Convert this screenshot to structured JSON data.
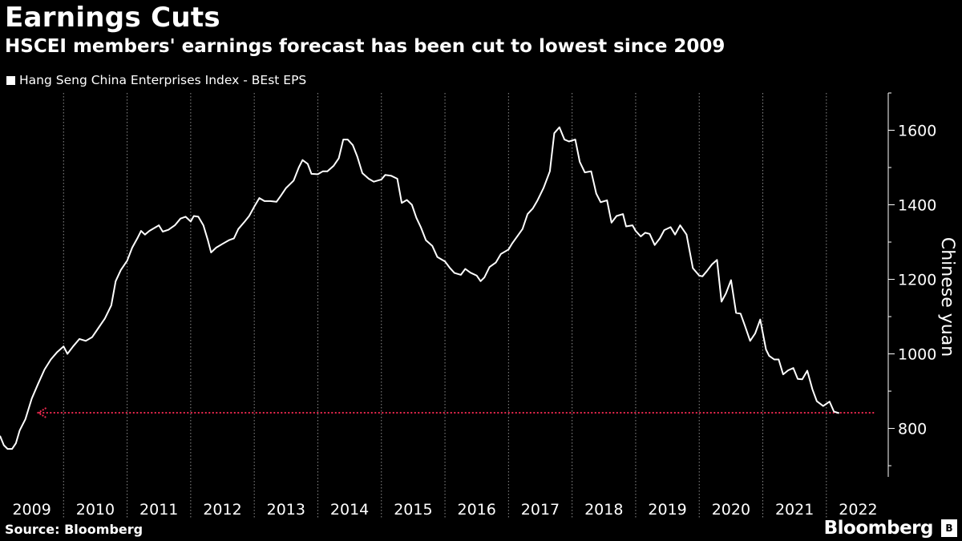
{
  "title": "Earnings Cuts",
  "subtitle": "HSCEI members' earnings forecast has been cut to lowest since 2009",
  "source": "Source: Bloomberg",
  "brand": "Bloomberg",
  "brand_mark": "B",
  "colors": {
    "line": "#ffffff",
    "reference": "#e8284d",
    "grid": "#8c8c8c",
    "background": "#000000"
  },
  "chart_data": {
    "type": "line",
    "title": "Earnings Cuts",
    "subtitle": "HSCEI members' earnings forecast has been cut to lowest since 2009",
    "ylabel": "Chinese yuan",
    "xlabel": "",
    "ylim": [
      670,
      1700
    ],
    "xlim": [
      2009.0,
      2022.86
    ],
    "yticks": [
      800,
      1000,
      1200,
      1400,
      1600
    ],
    "xtick_labels": [
      "2009",
      "2010",
      "2011",
      "2012",
      "2013",
      "2014",
      "2015",
      "2016",
      "2017",
      "2018",
      "2019",
      "2020",
      "2021",
      "2022"
    ],
    "legend": [
      "Hang Seng China Enterprises Index - BEst EPS"
    ],
    "legend_position": "top-left",
    "grid": "vertical-dotted",
    "reference_line": {
      "value": 842,
      "from": 2022.75,
      "to": 2009.6,
      "style": "dotted-arrow",
      "label": ""
    },
    "series": [
      {
        "name": "Hang Seng China Enterprises Index - BEst EPS",
        "points": [
          [
            2009.0,
            780
          ],
          [
            2009.06,
            755
          ],
          [
            2009.12,
            745
          ],
          [
            2009.19,
            745
          ],
          [
            2009.25,
            760
          ],
          [
            2009.31,
            795
          ],
          [
            2009.4,
            825
          ],
          [
            2009.5,
            880
          ],
          [
            2009.6,
            920
          ],
          [
            2009.7,
            958
          ],
          [
            2009.8,
            985
          ],
          [
            2009.9,
            1005
          ],
          [
            2010.0,
            1020
          ],
          [
            2010.06,
            1000
          ],
          [
            2010.15,
            1020
          ],
          [
            2010.25,
            1040
          ],
          [
            2010.35,
            1035
          ],
          [
            2010.45,
            1045
          ],
          [
            2010.55,
            1070
          ],
          [
            2010.65,
            1095
          ],
          [
            2010.75,
            1130
          ],
          [
            2010.82,
            1195
          ],
          [
            2010.9,
            1225
          ],
          [
            2011.0,
            1250
          ],
          [
            2011.08,
            1285
          ],
          [
            2011.16,
            1310
          ],
          [
            2011.22,
            1330
          ],
          [
            2011.28,
            1320
          ],
          [
            2011.35,
            1330
          ],
          [
            2011.5,
            1345
          ],
          [
            2011.56,
            1328
          ],
          [
            2011.65,
            1333
          ],
          [
            2011.75,
            1345
          ],
          [
            2011.84,
            1363
          ],
          [
            2011.92,
            1368
          ],
          [
            2012.0,
            1355
          ],
          [
            2012.05,
            1370
          ],
          [
            2012.12,
            1368
          ],
          [
            2012.2,
            1345
          ],
          [
            2012.27,
            1305
          ],
          [
            2012.32,
            1272
          ],
          [
            2012.4,
            1285
          ],
          [
            2012.5,
            1295
          ],
          [
            2012.6,
            1305
          ],
          [
            2012.68,
            1310
          ],
          [
            2012.75,
            1335
          ],
          [
            2012.85,
            1355
          ],
          [
            2012.92,
            1370
          ],
          [
            2013.0,
            1395
          ],
          [
            2013.08,
            1418
          ],
          [
            2013.16,
            1410
          ],
          [
            2013.25,
            1410
          ],
          [
            2013.35,
            1408
          ],
          [
            2013.42,
            1425
          ],
          [
            2013.5,
            1445
          ],
          [
            2013.62,
            1465
          ],
          [
            2013.7,
            1500
          ],
          [
            2013.76,
            1520
          ],
          [
            2013.84,
            1510
          ],
          [
            2013.9,
            1483
          ],
          [
            2014.0,
            1482
          ],
          [
            2014.08,
            1490
          ],
          [
            2014.15,
            1490
          ],
          [
            2014.25,
            1505
          ],
          [
            2014.33,
            1525
          ],
          [
            2014.4,
            1575
          ],
          [
            2014.47,
            1575
          ],
          [
            2014.55,
            1560
          ],
          [
            2014.62,
            1530
          ],
          [
            2014.7,
            1485
          ],
          [
            2014.8,
            1470
          ],
          [
            2014.88,
            1462
          ],
          [
            2015.0,
            1468
          ],
          [
            2015.06,
            1480
          ],
          [
            2015.15,
            1478
          ],
          [
            2015.25,
            1470
          ],
          [
            2015.32,
            1405
          ],
          [
            2015.4,
            1413
          ],
          [
            2015.48,
            1400
          ],
          [
            2015.55,
            1365
          ],
          [
            2015.62,
            1340
          ],
          [
            2015.7,
            1305
          ],
          [
            2015.8,
            1290
          ],
          [
            2015.88,
            1260
          ],
          [
            2016.0,
            1248
          ],
          [
            2016.08,
            1230
          ],
          [
            2016.15,
            1217
          ],
          [
            2016.25,
            1212
          ],
          [
            2016.32,
            1228
          ],
          [
            2016.4,
            1218
          ],
          [
            2016.5,
            1210
          ],
          [
            2016.56,
            1195
          ],
          [
            2016.62,
            1205
          ],
          [
            2016.7,
            1233
          ],
          [
            2016.8,
            1245
          ],
          [
            2016.88,
            1268
          ],
          [
            2017.0,
            1280
          ],
          [
            2017.06,
            1297
          ],
          [
            2017.15,
            1318
          ],
          [
            2017.22,
            1335
          ],
          [
            2017.3,
            1375
          ],
          [
            2017.38,
            1390
          ],
          [
            2017.45,
            1410
          ],
          [
            2017.55,
            1445
          ],
          [
            2017.65,
            1490
          ],
          [
            2017.72,
            1592
          ],
          [
            2017.8,
            1608
          ],
          [
            2017.88,
            1575
          ],
          [
            2017.95,
            1570
          ],
          [
            2018.05,
            1575
          ],
          [
            2018.12,
            1515
          ],
          [
            2018.2,
            1487
          ],
          [
            2018.3,
            1490
          ],
          [
            2018.38,
            1430
          ],
          [
            2018.45,
            1407
          ],
          [
            2018.55,
            1412
          ],
          [
            2018.62,
            1352
          ],
          [
            2018.7,
            1370
          ],
          [
            2018.8,
            1375
          ],
          [
            2018.85,
            1342
          ],
          [
            2018.95,
            1345
          ],
          [
            2019.0,
            1330
          ],
          [
            2019.08,
            1315
          ],
          [
            2019.15,
            1325
          ],
          [
            2019.22,
            1322
          ],
          [
            2019.3,
            1292
          ],
          [
            2019.38,
            1310
          ],
          [
            2019.45,
            1332
          ],
          [
            2019.55,
            1340
          ],
          [
            2019.62,
            1320
          ],
          [
            2019.7,
            1345
          ],
          [
            2019.8,
            1320
          ],
          [
            2019.9,
            1230
          ],
          [
            2020.0,
            1210
          ],
          [
            2020.05,
            1208
          ],
          [
            2020.12,
            1222
          ],
          [
            2020.2,
            1240
          ],
          [
            2020.28,
            1252
          ],
          [
            2020.35,
            1140
          ],
          [
            2020.42,
            1162
          ],
          [
            2020.5,
            1198
          ],
          [
            2020.58,
            1110
          ],
          [
            2020.65,
            1108
          ],
          [
            2020.72,
            1075
          ],
          [
            2020.8,
            1035
          ],
          [
            2020.88,
            1055
          ],
          [
            2020.96,
            1092
          ],
          [
            2021.05,
            1012
          ],
          [
            2021.1,
            995
          ],
          [
            2021.18,
            985
          ],
          [
            2021.25,
            985
          ],
          [
            2021.32,
            945
          ],
          [
            2021.4,
            956
          ],
          [
            2021.48,
            962
          ],
          [
            2021.55,
            933
          ],
          [
            2021.62,
            932
          ],
          [
            2021.7,
            955
          ],
          [
            2021.78,
            905
          ],
          [
            2021.85,
            873
          ],
          [
            2021.95,
            860
          ],
          [
            2022.05,
            872
          ],
          [
            2022.12,
            845
          ],
          [
            2022.2,
            841
          ]
        ]
      }
    ]
  }
}
